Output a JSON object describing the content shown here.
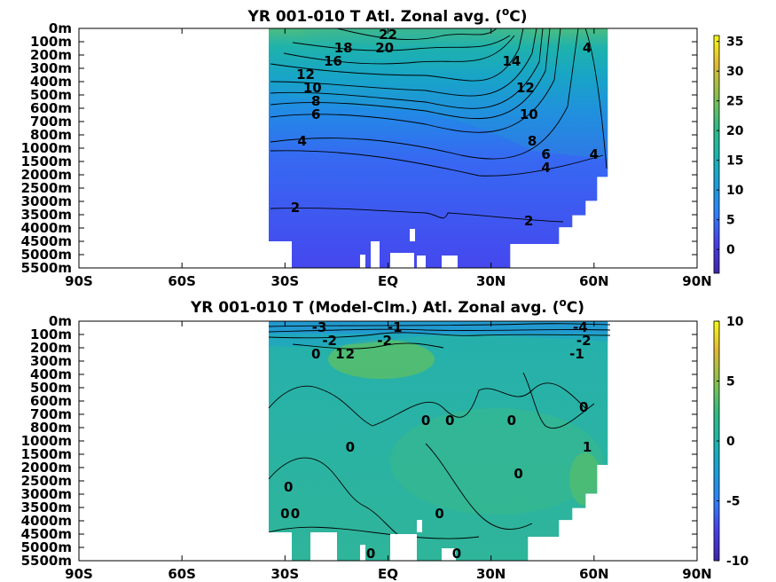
{
  "chart_data": [
    {
      "type": "heatmap",
      "title": "YR 001-010 T Atl. Zonal avg. (",
      "title_unit_sup": "o",
      "title_unit_tail": "C)",
      "x_ticks": [
        "90S",
        "60S",
        "30S",
        "EQ",
        "30N",
        "60N",
        "90N"
      ],
      "x_values": [
        -90,
        -60,
        -30,
        0,
        30,
        60,
        90
      ],
      "y_ticks": [
        "0m",
        "100m",
        "200m",
        "300m",
        "400m",
        "500m",
        "600m",
        "700m",
        "800m",
        "1000m",
        "1500m",
        "2000m",
        "2500m",
        "3000m",
        "3500m",
        "4000m",
        "4500m",
        "5000m",
        "5500m"
      ],
      "xlim": [
        -90,
        90
      ],
      "data_lat_range": [
        -35,
        64
      ],
      "colorbar": {
        "ticks": [
          "35",
          "30",
          "25",
          "20",
          "15",
          "10",
          "5",
          "0"
        ],
        "values": [
          35,
          30,
          25,
          20,
          15,
          10,
          5,
          0
        ],
        "range": [
          -4,
          36
        ]
      },
      "contour_labels": [
        {
          "text": "22",
          "lat": 0,
          "depth": "0m"
        },
        {
          "text": "20",
          "lat": -1,
          "depth": "100m"
        },
        {
          "text": "18",
          "lat": -13,
          "depth": "100m"
        },
        {
          "text": "16",
          "lat": -16,
          "depth": "200m"
        },
        {
          "text": "12",
          "lat": -24,
          "depth": "300m"
        },
        {
          "text": "10",
          "lat": -22,
          "depth": "400m"
        },
        {
          "text": "8",
          "lat": -21,
          "depth": "500m"
        },
        {
          "text": "6",
          "lat": -21,
          "depth": "600m"
        },
        {
          "text": "4",
          "lat": -25,
          "depth": "800m"
        },
        {
          "text": "2",
          "lat": -27,
          "depth": "3000m"
        },
        {
          "text": "14",
          "lat": 36,
          "depth": "200m"
        },
        {
          "text": "12",
          "lat": 40,
          "depth": "400m"
        },
        {
          "text": "10",
          "lat": 41,
          "depth": "600m"
        },
        {
          "text": "8",
          "lat": 42,
          "depth": "800m"
        },
        {
          "text": "6",
          "lat": 46,
          "depth": "1000m"
        },
        {
          "text": "4",
          "lat": 46,
          "depth": "1500m"
        },
        {
          "text": "4",
          "lat": 60,
          "depth": "1000m"
        },
        {
          "text": "4",
          "lat": 58,
          "depth": "100m"
        },
        {
          "text": "2",
          "lat": 41,
          "depth": "3500m"
        }
      ]
    },
    {
      "type": "heatmap",
      "title": "YR 001-010 T (Model-Clm.) Atl. Zonal avg. (",
      "title_unit_sup": "o",
      "title_unit_tail": "C)",
      "x_ticks": [
        "90S",
        "60S",
        "30S",
        "EQ",
        "30N",
        "60N",
        "90N"
      ],
      "x_values": [
        -90,
        -60,
        -30,
        0,
        30,
        60,
        90
      ],
      "y_ticks": [
        "0m",
        "100m",
        "200m",
        "300m",
        "400m",
        "500m",
        "600m",
        "700m",
        "800m",
        "1000m",
        "1500m",
        "2000m",
        "2500m",
        "3000m",
        "3500m",
        "4000m",
        "4500m",
        "5000m",
        "5500m"
      ],
      "xlim": [
        -90,
        90
      ],
      "data_lat_range": [
        -35,
        64
      ],
      "colorbar": {
        "ticks": [
          "10",
          "5",
          "0",
          "-5",
          "-10"
        ],
        "values": [
          10,
          5,
          0,
          -5,
          -10
        ],
        "range": [
          -10,
          10
        ]
      },
      "contour_labels": [
        {
          "text": "-3",
          "lat": -20,
          "depth": "0m"
        },
        {
          "text": "-2",
          "lat": -17,
          "depth": "100m"
        },
        {
          "text": "0",
          "lat": -21,
          "depth": "200m"
        },
        {
          "text": "1",
          "lat": -14,
          "depth": "200m"
        },
        {
          "text": "2",
          "lat": -11,
          "depth": "200m"
        },
        {
          "text": "-2",
          "lat": -1,
          "depth": "100m"
        },
        {
          "text": "-1",
          "lat": 2,
          "depth": "0m"
        },
        {
          "text": "0",
          "lat": 11,
          "depth": "700m"
        },
        {
          "text": "0",
          "lat": 18,
          "depth": "700m"
        },
        {
          "text": "0",
          "lat": -11,
          "depth": "1000m"
        },
        {
          "text": "0",
          "lat": 36,
          "depth": "700m"
        },
        {
          "text": "0",
          "lat": 38,
          "depth": "2000m"
        },
        {
          "text": "0",
          "lat": -29,
          "depth": "2500m"
        },
        {
          "text": "0",
          "lat": -30,
          "depth": "3500m"
        },
        {
          "text": "0",
          "lat": -27,
          "depth": "3500m"
        },
        {
          "text": "0",
          "lat": 15,
          "depth": "3500m"
        },
        {
          "text": "0",
          "lat": -5,
          "depth": "5000m"
        },
        {
          "text": "0",
          "lat": 20,
          "depth": "5000m"
        },
        {
          "text": "0",
          "lat": 57,
          "depth": "600m"
        },
        {
          "text": "1",
          "lat": 58,
          "depth": "1000m"
        },
        {
          "text": "-1",
          "lat": 55,
          "depth": "200m"
        },
        {
          "text": "-2",
          "lat": 57,
          "depth": "100m"
        },
        {
          "text": "-4",
          "lat": 56,
          "depth": "0m"
        }
      ]
    }
  ]
}
